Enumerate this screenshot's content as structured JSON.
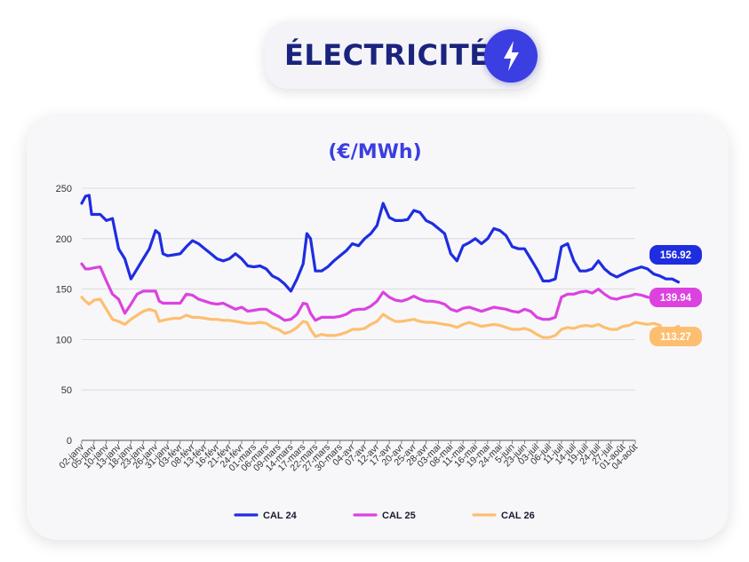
{
  "header": {
    "title": "ÉLECTRICITÉ",
    "icon": "lightning-bolt-icon",
    "icon_color": "#3b3ee0"
  },
  "chart_data": {
    "type": "line",
    "title": "(€/MWh)",
    "title_color": "#3b3ee0",
    "xlabel": "",
    "ylabel": "",
    "ylim": [
      0,
      250
    ],
    "yticks": [
      0,
      50,
      100,
      150,
      200,
      250
    ],
    "grid": true,
    "legend_position": "bottom",
    "x_labels": [
      "02-janv",
      "05-janv",
      "10-janv",
      "13-janv",
      "18-janv",
      "23-janv",
      "26-janv",
      "31-janv",
      "03-févr",
      "08-févr",
      "13-févr",
      "16-févr",
      "21-févr",
      "24-févr",
      "01-mars",
      "06-mars",
      "09-mars",
      "14-mars",
      "17-mars",
      "22-mars",
      "27-mars",
      "30-mars",
      "04-avr",
      "07-avr",
      "12-avr",
      "17-avr",
      "20-avr",
      "25-avr",
      "28-avr",
      "03-mai",
      "08-mai",
      "11-mai",
      "16-mai",
      "19-mai",
      "24-mai",
      "5-juin",
      "23-juin",
      "03-juil",
      "06-juil",
      "11-juil",
      "14-juil",
      "19-juil",
      "24-juil",
      "27-juil",
      "01-août",
      "04-août"
    ],
    "series": [
      {
        "name": "CAL 24",
        "color": "#1f2de0",
        "end_label": "156.92",
        "values": [
          [
            0,
            235
          ],
          [
            0.3,
            242
          ],
          [
            0.6,
            243
          ],
          [
            0.8,
            224
          ],
          [
            1.5,
            224
          ],
          [
            2,
            218
          ],
          [
            2.5,
            220
          ],
          [
            3,
            190
          ],
          [
            3.5,
            180
          ],
          [
            4,
            160
          ],
          [
            4.5,
            170
          ],
          [
            5,
            180
          ],
          [
            5.5,
            190
          ],
          [
            6,
            208
          ],
          [
            6.3,
            205
          ],
          [
            6.6,
            185
          ],
          [
            7,
            183
          ],
          [
            7.5,
            184
          ],
          [
            8,
            185
          ],
          [
            8.5,
            192
          ],
          [
            9,
            198
          ],
          [
            9.5,
            195
          ],
          [
            10,
            190
          ],
          [
            10.5,
            185
          ],
          [
            11,
            180
          ],
          [
            11.5,
            178
          ],
          [
            12,
            180
          ],
          [
            12.5,
            185
          ],
          [
            13,
            180
          ],
          [
            13.5,
            173
          ],
          [
            14,
            172
          ],
          [
            14.5,
            173
          ],
          [
            15,
            170
          ],
          [
            15.5,
            163
          ],
          [
            16,
            160
          ],
          [
            16.5,
            155
          ],
          [
            17,
            148
          ],
          [
            17.5,
            160
          ],
          [
            18,
            175
          ],
          [
            18.3,
            205
          ],
          [
            18.6,
            200
          ],
          [
            19,
            168
          ],
          [
            19.5,
            168
          ],
          [
            20,
            172
          ],
          [
            20.5,
            178
          ],
          [
            21,
            183
          ],
          [
            21.5,
            188
          ],
          [
            22,
            195
          ],
          [
            22.5,
            193
          ],
          [
            23,
            200
          ],
          [
            23.5,
            205
          ],
          [
            24,
            213
          ],
          [
            24.5,
            235
          ],
          [
            25,
            221
          ],
          [
            25.5,
            218
          ],
          [
            26,
            218
          ],
          [
            26.5,
            219
          ],
          [
            27,
            228
          ],
          [
            27.5,
            226
          ],
          [
            28,
            218
          ],
          [
            28.5,
            215
          ],
          [
            29,
            210
          ],
          [
            29.5,
            205
          ],
          [
            30,
            185
          ],
          [
            30.5,
            178
          ],
          [
            31,
            193
          ],
          [
            31.5,
            196
          ],
          [
            32,
            200
          ],
          [
            32.5,
            195
          ],
          [
            33,
            200
          ],
          [
            33.5,
            210
          ],
          [
            34,
            208
          ],
          [
            34.5,
            203
          ],
          [
            35,
            192
          ],
          [
            35.5,
            190
          ],
          [
            36,
            190
          ],
          [
            36.5,
            180
          ],
          [
            37,
            170
          ],
          [
            37.5,
            158
          ],
          [
            38,
            158
          ],
          [
            38.5,
            160
          ],
          [
            39,
            192
          ],
          [
            39.5,
            195
          ],
          [
            40,
            178
          ],
          [
            40.5,
            168
          ],
          [
            41,
            168
          ],
          [
            41.5,
            170
          ],
          [
            42,
            178
          ],
          [
            42.5,
            170
          ],
          [
            43,
            165
          ],
          [
            43.5,
            162
          ],
          [
            44,
            165
          ],
          [
            44.5,
            168
          ],
          [
            45,
            170
          ],
          [
            45.5,
            172
          ],
          [
            46,
            170
          ],
          [
            46.5,
            165
          ],
          [
            47,
            163
          ],
          [
            47.5,
            160
          ],
          [
            48,
            160
          ],
          [
            48.5,
            156.92
          ]
        ]
      },
      {
        "name": "CAL 25",
        "color": "#dc42e0",
        "end_label": "139.94",
        "values": [
          [
            0,
            175
          ],
          [
            0.3,
            170
          ],
          [
            0.6,
            170
          ],
          [
            1,
            171
          ],
          [
            1.5,
            172
          ],
          [
            2,
            158
          ],
          [
            2.5,
            145
          ],
          [
            3,
            140
          ],
          [
            3.5,
            126
          ],
          [
            4,
            135
          ],
          [
            4.5,
            145
          ],
          [
            5,
            148
          ],
          [
            5.5,
            148
          ],
          [
            6,
            148
          ],
          [
            6.3,
            138
          ],
          [
            6.6,
            136
          ],
          [
            7,
            136
          ],
          [
            7.5,
            136
          ],
          [
            8,
            136
          ],
          [
            8.5,
            145
          ],
          [
            9,
            144
          ],
          [
            9.5,
            140
          ],
          [
            10,
            138
          ],
          [
            10.5,
            136
          ],
          [
            11,
            135
          ],
          [
            11.5,
            136
          ],
          [
            12,
            133
          ],
          [
            12.5,
            130
          ],
          [
            13,
            132
          ],
          [
            13.5,
            128
          ],
          [
            14,
            129
          ],
          [
            14.5,
            130
          ],
          [
            15,
            130
          ],
          [
            15.5,
            126
          ],
          [
            16,
            123
          ],
          [
            16.5,
            119
          ],
          [
            17,
            120
          ],
          [
            17.5,
            125
          ],
          [
            18,
            136
          ],
          [
            18.3,
            135
          ],
          [
            18.6,
            126
          ],
          [
            19,
            119
          ],
          [
            19.5,
            122
          ],
          [
            20,
            122
          ],
          [
            20.5,
            122
          ],
          [
            21,
            123
          ],
          [
            21.5,
            125
          ],
          [
            22,
            129
          ],
          [
            22.5,
            130
          ],
          [
            23,
            130
          ],
          [
            23.5,
            133
          ],
          [
            24,
            138
          ],
          [
            24.5,
            147
          ],
          [
            25,
            142
          ],
          [
            25.5,
            139
          ],
          [
            26,
            138
          ],
          [
            26.5,
            140
          ],
          [
            27,
            143
          ],
          [
            27.5,
            140
          ],
          [
            28,
            138
          ],
          [
            28.5,
            138
          ],
          [
            29,
            137
          ],
          [
            29.5,
            135
          ],
          [
            30,
            130
          ],
          [
            30.5,
            128
          ],
          [
            31,
            131
          ],
          [
            31.5,
            132
          ],
          [
            32,
            130
          ],
          [
            32.5,
            128
          ],
          [
            33,
            130
          ],
          [
            33.5,
            132
          ],
          [
            34,
            131
          ],
          [
            34.5,
            130
          ],
          [
            35,
            128
          ],
          [
            35.5,
            127
          ],
          [
            36,
            130
          ],
          [
            36.5,
            128
          ],
          [
            37,
            122
          ],
          [
            37.5,
            120
          ],
          [
            38,
            120
          ],
          [
            38.5,
            122
          ],
          [
            39,
            142
          ],
          [
            39.5,
            145
          ],
          [
            40,
            145
          ],
          [
            40.5,
            147
          ],
          [
            41,
            148
          ],
          [
            41.5,
            146
          ],
          [
            42,
            150
          ],
          [
            42.5,
            145
          ],
          [
            43,
            141
          ],
          [
            43.5,
            140
          ],
          [
            44,
            142
          ],
          [
            44.5,
            143
          ],
          [
            45,
            145
          ],
          [
            45.5,
            144
          ],
          [
            46,
            142
          ],
          [
            46.5,
            141
          ],
          [
            47,
            141
          ],
          [
            47.5,
            138
          ],
          [
            48,
            140
          ],
          [
            48.5,
            139.94
          ]
        ]
      },
      {
        "name": "CAL 26",
        "color": "#fdbf6f",
        "end_label": "113.27",
        "values": [
          [
            0,
            142
          ],
          [
            0.3,
            138
          ],
          [
            0.6,
            135
          ],
          [
            1,
            139
          ],
          [
            1.5,
            140
          ],
          [
            2,
            130
          ],
          [
            2.5,
            120
          ],
          [
            3,
            118
          ],
          [
            3.5,
            115
          ],
          [
            4,
            120
          ],
          [
            4.5,
            124
          ],
          [
            5,
            128
          ],
          [
            5.5,
            130
          ],
          [
            6,
            128
          ],
          [
            6.3,
            118
          ],
          [
            6.6,
            119
          ],
          [
            7,
            120
          ],
          [
            7.5,
            121
          ],
          [
            8,
            121
          ],
          [
            8.5,
            124
          ],
          [
            9,
            122
          ],
          [
            9.5,
            122
          ],
          [
            10,
            121
          ],
          [
            10.5,
            120
          ],
          [
            11,
            120
          ],
          [
            11.5,
            119
          ],
          [
            12,
            119
          ],
          [
            12.5,
            118
          ],
          [
            13,
            117
          ],
          [
            13.5,
            116
          ],
          [
            14,
            116
          ],
          [
            14.5,
            117
          ],
          [
            15,
            116
          ],
          [
            15.5,
            112
          ],
          [
            16,
            110
          ],
          [
            16.5,
            106
          ],
          [
            17,
            108
          ],
          [
            17.5,
            112
          ],
          [
            18,
            118
          ],
          [
            18.3,
            117
          ],
          [
            18.6,
            110
          ],
          [
            19,
            103
          ],
          [
            19.5,
            105
          ],
          [
            20,
            104
          ],
          [
            20.5,
            104
          ],
          [
            21,
            105
          ],
          [
            21.5,
            107
          ],
          [
            22,
            110
          ],
          [
            22.5,
            110
          ],
          [
            23,
            111
          ],
          [
            23.5,
            115
          ],
          [
            24,
            118
          ],
          [
            24.5,
            125
          ],
          [
            25,
            121
          ],
          [
            25.5,
            118
          ],
          [
            26,
            118
          ],
          [
            26.5,
            119
          ],
          [
            27,
            120
          ],
          [
            27.5,
            118
          ],
          [
            28,
            117
          ],
          [
            28.5,
            117
          ],
          [
            29,
            116
          ],
          [
            29.5,
            115
          ],
          [
            30,
            114
          ],
          [
            30.5,
            112
          ],
          [
            31,
            115
          ],
          [
            31.5,
            117
          ],
          [
            32,
            115
          ],
          [
            32.5,
            113
          ],
          [
            33,
            114
          ],
          [
            33.5,
            115
          ],
          [
            34,
            114
          ],
          [
            34.5,
            112
          ],
          [
            35,
            110
          ],
          [
            35.5,
            110
          ],
          [
            36,
            111
          ],
          [
            36.5,
            109
          ],
          [
            37,
            105
          ],
          [
            37.5,
            102
          ],
          [
            38,
            102
          ],
          [
            38.5,
            104
          ],
          [
            39,
            110
          ],
          [
            39.5,
            112
          ],
          [
            40,
            111
          ],
          [
            40.5,
            113
          ],
          [
            41,
            114
          ],
          [
            41.5,
            113
          ],
          [
            42,
            115
          ],
          [
            42.5,
            112
          ],
          [
            43,
            110
          ],
          [
            43.5,
            110
          ],
          [
            44,
            113
          ],
          [
            44.5,
            114
          ],
          [
            45,
            117
          ],
          [
            45.5,
            116
          ],
          [
            46,
            115
          ],
          [
            46.5,
            116
          ],
          [
            47,
            114
          ],
          [
            47.5,
            103
          ],
          [
            48,
            110
          ],
          [
            48.5,
            113.27
          ]
        ]
      }
    ]
  }
}
